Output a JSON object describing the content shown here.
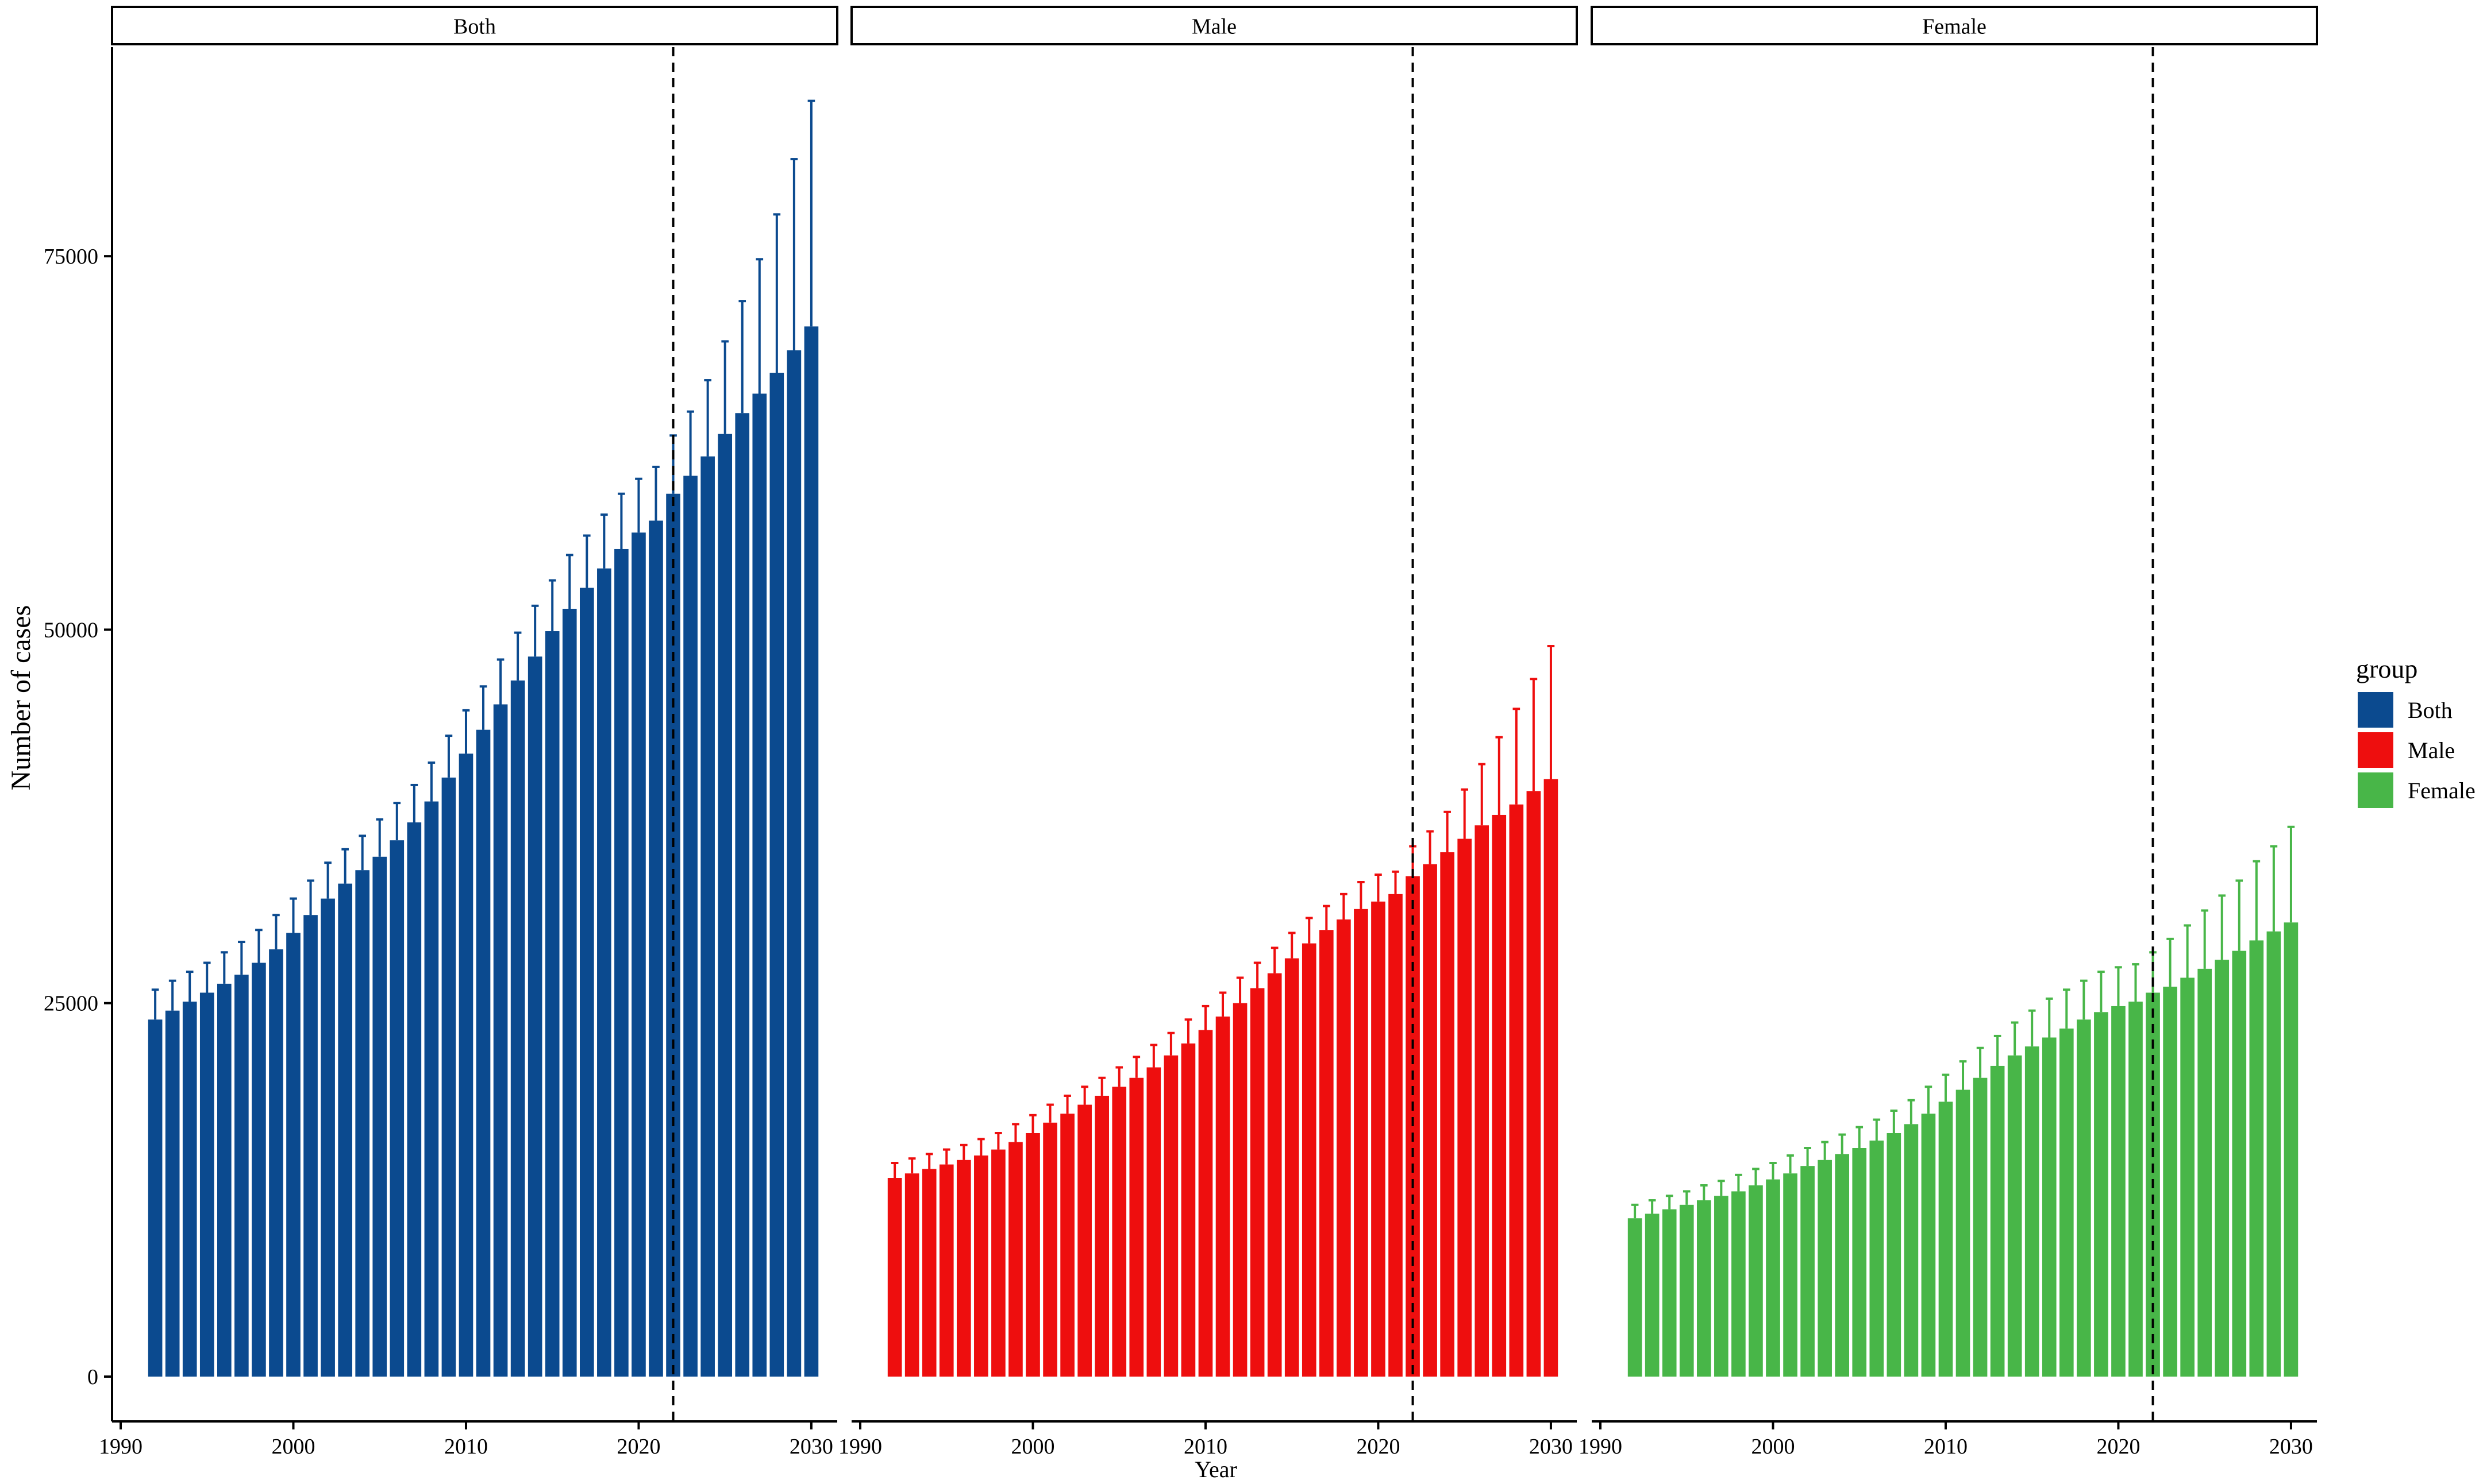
{
  "chart_data": {
    "type": "bar",
    "xlabel": "Year",
    "ylabel": "Number of cases",
    "ylim": [
      -3000,
      89000
    ],
    "xlim": [
      1989.5,
      2031.5
    ],
    "y_ticks": [
      0,
      25000,
      50000,
      75000
    ],
    "y_tick_labels": [
      "0",
      "25000",
      "50000",
      "75000"
    ],
    "x_ticks": [
      1990,
      2000,
      2010,
      2020,
      2030
    ],
    "x_tick_labels": [
      "1990",
      "2000",
      "2010",
      "2020",
      "2030"
    ],
    "vline_x": 2022,
    "years": [
      1992,
      1993,
      1994,
      1995,
      1996,
      1997,
      1998,
      1999,
      2000,
      2001,
      2002,
      2003,
      2004,
      2005,
      2006,
      2007,
      2008,
      2009,
      2010,
      2011,
      2012,
      2013,
      2014,
      2015,
      2016,
      2017,
      2018,
      2019,
      2020,
      2021,
      2022,
      2023,
      2024,
      2025,
      2026,
      2027,
      2028,
      2029,
      2030
    ],
    "legend": {
      "title": "group",
      "position": "right",
      "items": [
        {
          "label": "Both",
          "color": "#0B4A8F"
        },
        {
          "label": "Male",
          "color": "#EE0E0E"
        },
        {
          "label": "Female",
          "color": "#48B648"
        }
      ]
    },
    "panels": [
      {
        "strip": "Both",
        "color": "#0B4A8F",
        "values": [
          23900,
          24500,
          25100,
          25700,
          26300,
          26900,
          27700,
          28600,
          29700,
          30900,
          32000,
          33000,
          33900,
          34800,
          35900,
          37100,
          38500,
          40100,
          41700,
          43300,
          45000,
          46600,
          48200,
          49900,
          51400,
          52800,
          54100,
          55400,
          56500,
          57300,
          59100,
          60300,
          61600,
          63100,
          64500,
          65800,
          67200,
          68700,
          70300
        ],
        "upper": [
          25900,
          26500,
          27100,
          27700,
          28400,
          29100,
          29900,
          30900,
          32000,
          33200,
          34400,
          35300,
          36200,
          37300,
          38400,
          39600,
          41100,
          42900,
          44600,
          46200,
          48000,
          49800,
          51600,
          53300,
          55000,
          56300,
          57700,
          59100,
          60100,
          60900,
          63000,
          64600,
          66700,
          69300,
          72000,
          74800,
          77800,
          81500,
          85400
        ]
      },
      {
        "strip": "Male",
        "color": "#EE0E0E",
        "values": [
          13300,
          13600,
          13900,
          14200,
          14500,
          14800,
          15200,
          15700,
          16300,
          17000,
          17600,
          18200,
          18800,
          19400,
          20000,
          20700,
          21500,
          22300,
          23200,
          24100,
          25000,
          26000,
          27000,
          28000,
          29000,
          29900,
          30600,
          31300,
          31800,
          32300,
          33500,
          34300,
          35100,
          36000,
          36900,
          37600,
          38300,
          39200,
          40000
        ],
        "upper": [
          14300,
          14600,
          14900,
          15200,
          15500,
          15900,
          16300,
          16900,
          17500,
          18200,
          18800,
          19400,
          20000,
          20700,
          21400,
          22200,
          23000,
          23900,
          24800,
          25700,
          26700,
          27700,
          28700,
          29700,
          30700,
          31500,
          32300,
          33100,
          33600,
          33800,
          35500,
          36500,
          37800,
          39300,
          41000,
          42800,
          44700,
          46700,
          48900
        ]
      },
      {
        "strip": "Female",
        "color": "#48B648",
        "values": [
          10600,
          10900,
          11200,
          11500,
          11800,
          12100,
          12400,
          12800,
          13200,
          13600,
          14100,
          14500,
          14900,
          15300,
          15800,
          16300,
          16900,
          17600,
          18400,
          19200,
          20000,
          20800,
          21500,
          22100,
          22700,
          23300,
          23900,
          24400,
          24800,
          25100,
          25700,
          26100,
          26700,
          27300,
          27900,
          28500,
          29200,
          29800,
          30400
        ],
        "upper": [
          11500,
          11800,
          12100,
          12400,
          12800,
          13100,
          13500,
          13900,
          14300,
          14800,
          15300,
          15700,
          16200,
          16700,
          17200,
          17800,
          18500,
          19400,
          20200,
          21100,
          22000,
          22800,
          23700,
          24500,
          25300,
          25900,
          26500,
          27100,
          27400,
          27600,
          28400,
          29300,
          30200,
          31200,
          32200,
          33200,
          34500,
          35500,
          36800
        ]
      }
    ]
  }
}
